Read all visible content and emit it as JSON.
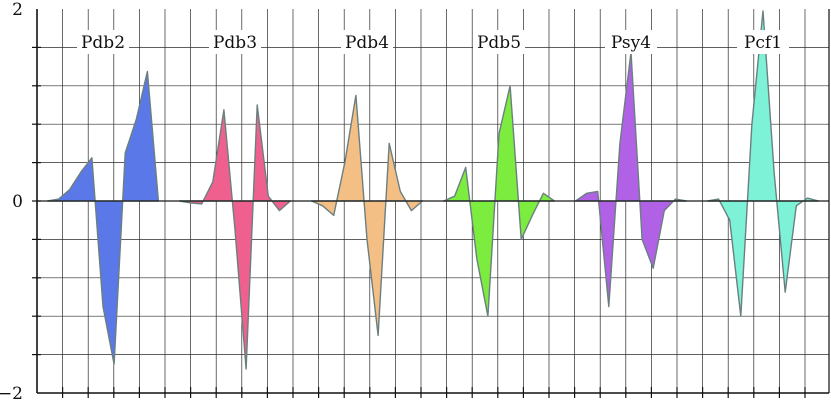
{
  "chart_data": {
    "type": "area",
    "title": "",
    "xlabel": "",
    "ylabel": "",
    "ylim": [
      -2,
      2
    ],
    "yticks": [
      {
        "value": 2,
        "label": "2"
      },
      {
        "value": 0,
        "label": "0"
      },
      {
        "value": -2,
        "label": "−2"
      }
    ],
    "grid": true,
    "legend": "none",
    "series": [
      {
        "name": "Pdb2",
        "color": "#5b78e8",
        "x": [
          0.0,
          0.1,
          0.2,
          0.3,
          0.4,
          0.5,
          0.6,
          0.7,
          0.8,
          0.9,
          1.0
        ],
        "y": [
          0.0,
          0.02,
          0.12,
          0.3,
          0.45,
          -1.1,
          -1.7,
          0.5,
          0.85,
          1.35,
          0.0
        ]
      },
      {
        "name": "Pdb3",
        "color": "#f0608e",
        "x": [
          0.0,
          0.1,
          0.2,
          0.3,
          0.4,
          0.5,
          0.6,
          0.7,
          0.8,
          0.9,
          1.0
        ],
        "y": [
          0.0,
          -0.02,
          -0.03,
          0.2,
          0.95,
          -0.3,
          -1.75,
          1.0,
          0.05,
          -0.1,
          0.0
        ]
      },
      {
        "name": "Pdb4",
        "color": "#f4bf85",
        "x": [
          0.0,
          0.1,
          0.2,
          0.3,
          0.4,
          0.5,
          0.6,
          0.7,
          0.8,
          0.9,
          1.0
        ],
        "y": [
          0.0,
          -0.05,
          -0.15,
          0.4,
          1.1,
          -0.4,
          -1.4,
          0.6,
          0.1,
          -0.1,
          0.0
        ]
      },
      {
        "name": "Pdb5",
        "color": "#7cec3e",
        "x": [
          0.0,
          0.1,
          0.2,
          0.3,
          0.4,
          0.5,
          0.6,
          0.7,
          0.8,
          0.9,
          1.0
        ],
        "y": [
          0.0,
          0.05,
          0.35,
          -0.6,
          -1.2,
          0.7,
          1.2,
          -0.4,
          -0.15,
          0.08,
          0.0
        ]
      },
      {
        "name": "Psy4",
        "color": "#b061e6",
        "x": [
          0.0,
          0.1,
          0.2,
          0.3,
          0.4,
          0.5,
          0.6,
          0.7,
          0.8,
          0.9,
          1.0
        ],
        "y": [
          0.0,
          0.08,
          0.1,
          -1.1,
          0.6,
          1.55,
          -0.4,
          -0.7,
          -0.1,
          0.02,
          0.0
        ]
      },
      {
        "name": "Pcf1",
        "color": "#7df2d6",
        "x": [
          0.0,
          0.1,
          0.2,
          0.3,
          0.4,
          0.5,
          0.6,
          0.7,
          0.8,
          0.9,
          1.0
        ],
        "y": [
          0.0,
          0.02,
          -0.2,
          -1.2,
          0.8,
          1.98,
          0.3,
          -0.95,
          -0.05,
          0.03,
          0.0
        ]
      }
    ]
  }
}
